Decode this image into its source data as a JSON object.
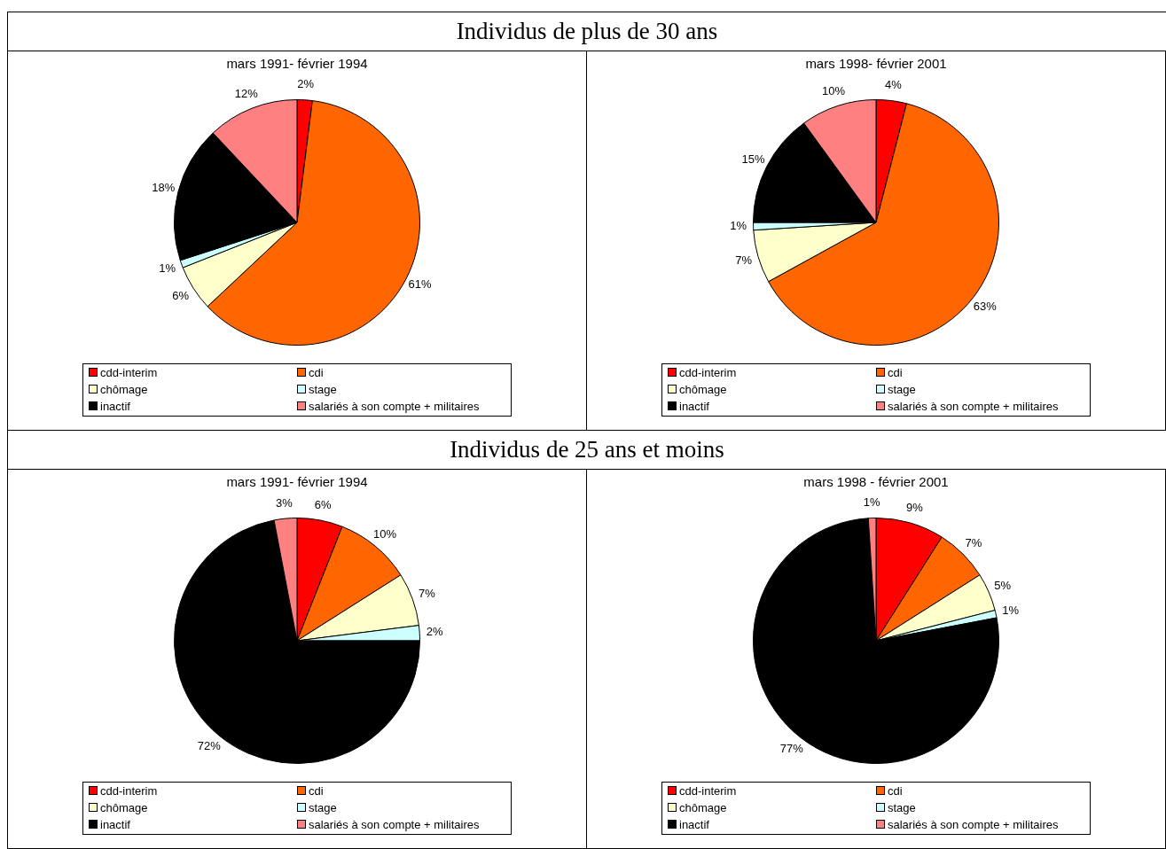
{
  "chart_data": [
    {
      "type": "pie",
      "title": "Individus de plus de 30 ans",
      "subtitle": "mars 1991- février 1994",
      "categories": [
        "cdd-interim",
        "cdi",
        "chômage",
        "stage",
        "inactif",
        "salariés à son compte + militaires"
      ],
      "values": [
        2,
        61,
        6,
        1,
        18,
        12
      ],
      "value_labels": [
        "2%",
        "61%",
        "6%",
        "1%",
        "18%",
        "12%"
      ],
      "colors": [
        "#ff0000",
        "#ff6600",
        "#ffffcc",
        "#ccffff",
        "#000000",
        "#ff8080"
      ],
      "legend": "bottom"
    },
    {
      "type": "pie",
      "subtitle": "mars 1998- février 2001",
      "categories": [
        "cdd-interim",
        "cdi",
        "chômage",
        "stage",
        "inactif",
        "salariés à son compte + militaires"
      ],
      "values": [
        4,
        63,
        7,
        1,
        15,
        10
      ],
      "value_labels": [
        "4%",
        "63%",
        "7%",
        "1%",
        "15%",
        "10%"
      ],
      "colors": [
        "#ff0000",
        "#ff6600",
        "#ffffcc",
        "#ccffff",
        "#000000",
        "#ff8080"
      ],
      "legend": "bottom"
    },
    {
      "type": "pie",
      "title": "Individus de 25 ans et moins",
      "subtitle": "mars 1991- février 1994",
      "categories": [
        "cdd-interim",
        "cdi",
        "chômage",
        "stage",
        "inactif",
        "salariés à son compte + militaires"
      ],
      "values": [
        6,
        10,
        7,
        2,
        72,
        3
      ],
      "value_labels": [
        "6%",
        "10%",
        "7%",
        "2%",
        "72%",
        "3%"
      ],
      "colors": [
        "#ff0000",
        "#ff6600",
        "#ffffcc",
        "#ccffff",
        "#000000",
        "#ff8080"
      ],
      "legend": "bottom"
    },
    {
      "type": "pie",
      "subtitle": "mars 1998 - février 2001",
      "categories": [
        "cdd-interim",
        "cdi",
        "chômage",
        "stage",
        "inactif",
        "salariés à son compte + militaires"
      ],
      "values": [
        9,
        7,
        5,
        1,
        77,
        1
      ],
      "value_labels": [
        "9%",
        "7%",
        "5%",
        "1%",
        "77%",
        "1%"
      ],
      "colors": [
        "#ff0000",
        "#ff6600",
        "#ffffcc",
        "#ccffff",
        "#000000",
        "#ff8080"
      ],
      "legend": "bottom"
    }
  ]
}
